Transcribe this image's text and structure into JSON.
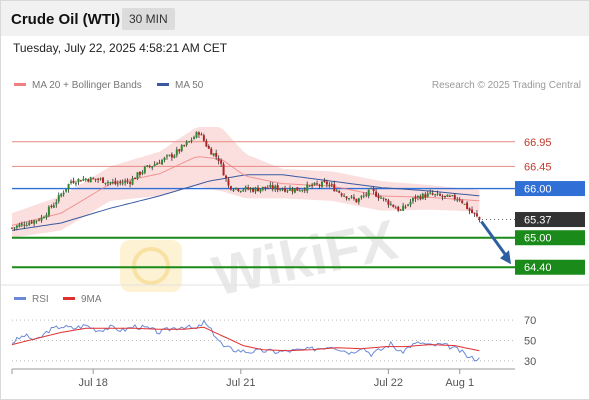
{
  "header": {
    "title": "Crude Oil (WTI)",
    "interval": "30 MIN"
  },
  "timestamp": "Tuesday, July 22, 2025 4:58:21 AM CET",
  "source": "Research © 2025 Trading Central",
  "watermark": "WikiFX",
  "legend_main": [
    {
      "label": "MA 20 + Bollinger Bands",
      "color": "#f08080"
    },
    {
      "label": "MA 50",
      "color": "#3a5aa0"
    }
  ],
  "legend_rsi": [
    {
      "label": "RSI",
      "color": "#6a8ad8"
    },
    {
      "label": "9MA",
      "color": "#e03030"
    }
  ],
  "chart_data": [
    {
      "type": "candlestick",
      "symbol": "Crude Oil (WTI)",
      "interval": "30 MIN",
      "ylim": [
        64.1,
        67.8
      ],
      "x_ticks": [
        {
          "label": "Jul 18",
          "i": 33
        },
        {
          "label": "Jul 21",
          "i": 93
        },
        {
          "label": "Jul 22",
          "i": 153
        },
        {
          "label": "Aug 1",
          "i": 182
        }
      ],
      "levels": [
        {
          "value": 66.95,
          "label": "66.95",
          "style": "resistance-thin",
          "color": "#e48a82"
        },
        {
          "value": 66.45,
          "label": "66.45",
          "style": "resistance-thin",
          "color": "#e48a82"
        },
        {
          "value": 66.0,
          "label": "66.00",
          "style": "pivot",
          "color": "#2f6fd6"
        },
        {
          "value": 65.37,
          "label": "65.37",
          "style": "last-price",
          "color": "#333333"
        },
        {
          "value": 65.0,
          "label": "65.00",
          "style": "support",
          "color": "#1a8a1a"
        },
        {
          "value": 64.4,
          "label": "64.40",
          "style": "support",
          "color": "#1a8a1a"
        }
      ],
      "forecast_arrow": {
        "from": 65.37,
        "to": 64.4
      },
      "close_path": [
        [
          0,
          65.2
        ],
        [
          6,
          65.3
        ],
        [
          12,
          65.4
        ],
        [
          18,
          65.75
        ],
        [
          24,
          66.15
        ],
        [
          30,
          66.2
        ],
        [
          36,
          66.18
        ],
        [
          42,
          66.1
        ],
        [
          48,
          66.15
        ],
        [
          54,
          66.4
        ],
        [
          60,
          66.55
        ],
        [
          66,
          66.7
        ],
        [
          72,
          66.95
        ],
        [
          76,
          67.15
        ],
        [
          80,
          66.8
        ],
        [
          84,
          66.6
        ],
        [
          88,
          66.05
        ],
        [
          92,
          66.0
        ],
        [
          98,
          65.98
        ],
        [
          104,
          66.02
        ],
        [
          110,
          66.0
        ],
        [
          116,
          65.98
        ],
        [
          122,
          66.05
        ],
        [
          128,
          66.1
        ],
        [
          134,
          65.9
        ],
        [
          140,
          65.75
        ],
        [
          146,
          65.95
        ],
        [
          152,
          65.75
        ],
        [
          158,
          65.55
        ],
        [
          164,
          65.82
        ],
        [
          170,
          65.88
        ],
        [
          176,
          65.82
        ],
        [
          182,
          65.8
        ],
        [
          186,
          65.55
        ],
        [
          190,
          65.37
        ]
      ],
      "ma20_path": [
        [
          0,
          65.25
        ],
        [
          20,
          65.5
        ],
        [
          40,
          66.1
        ],
        [
          60,
          66.3
        ],
        [
          75,
          66.65
        ],
        [
          85,
          66.6
        ],
        [
          95,
          66.25
        ],
        [
          110,
          66.1
        ],
        [
          130,
          66.05
        ],
        [
          150,
          65.85
        ],
        [
          170,
          65.82
        ],
        [
          190,
          65.75
        ]
      ],
      "ma50_path": [
        [
          0,
          65.15
        ],
        [
          20,
          65.3
        ],
        [
          40,
          65.6
        ],
        [
          60,
          65.85
        ],
        [
          80,
          66.15
        ],
        [
          95,
          66.28
        ],
        [
          110,
          66.28
        ],
        [
          130,
          66.15
        ],
        [
          150,
          66.02
        ],
        [
          170,
          65.95
        ],
        [
          190,
          65.85
        ]
      ],
      "bollinger_halfwidth": [
        [
          0,
          0.25
        ],
        [
          20,
          0.35
        ],
        [
          40,
          0.35
        ],
        [
          60,
          0.45
        ],
        [
          75,
          0.6
        ],
        [
          85,
          0.65
        ],
        [
          95,
          0.45
        ],
        [
          110,
          0.3
        ],
        [
          130,
          0.3
        ],
        [
          150,
          0.3
        ],
        [
          170,
          0.25
        ],
        [
          190,
          0.22
        ]
      ]
    },
    {
      "type": "line",
      "name": "RSI panel",
      "ylim": [
        25,
        78
      ],
      "y_ticks": [
        "70",
        "50",
        "30"
      ],
      "y_tick_values": [
        70,
        50,
        30
      ],
      "rsi_path": [
        [
          0,
          48
        ],
        [
          5,
          55
        ],
        [
          10,
          50
        ],
        [
          15,
          60
        ],
        [
          20,
          64
        ],
        [
          25,
          62
        ],
        [
          30,
          65
        ],
        [
          35,
          60
        ],
        [
          40,
          63
        ],
        [
          45,
          60
        ],
        [
          50,
          64
        ],
        [
          55,
          62
        ],
        [
          60,
          58
        ],
        [
          65,
          62
        ],
        [
          70,
          64
        ],
        [
          75,
          61
        ],
        [
          78,
          68
        ],
        [
          82,
          57
        ],
        [
          86,
          44
        ],
        [
          90,
          41
        ],
        [
          96,
          39
        ],
        [
          102,
          40
        ],
        [
          108,
          39
        ],
        [
          114,
          40
        ],
        [
          120,
          41
        ],
        [
          126,
          43
        ],
        [
          130,
          45
        ],
        [
          134,
          41
        ],
        [
          138,
          38
        ],
        [
          142,
          44
        ],
        [
          146,
          37
        ],
        [
          150,
          41
        ],
        [
          154,
          47
        ],
        [
          158,
          38
        ],
        [
          162,
          45
        ],
        [
          166,
          48
        ],
        [
          170,
          45
        ],
        [
          174,
          46
        ],
        [
          178,
          44
        ],
        [
          182,
          40
        ],
        [
          186,
          33
        ],
        [
          190,
          32
        ]
      ],
      "ma9_path": [
        [
          0,
          46
        ],
        [
          10,
          52
        ],
        [
          20,
          58
        ],
        [
          30,
          62
        ],
        [
          40,
          62
        ],
        [
          50,
          62
        ],
        [
          60,
          61
        ],
        [
          70,
          61
        ],
        [
          78,
          63
        ],
        [
          86,
          54
        ],
        [
          94,
          45
        ],
        [
          102,
          41
        ],
        [
          112,
          40
        ],
        [
          122,
          41
        ],
        [
          132,
          43
        ],
        [
          142,
          42
        ],
        [
          152,
          44
        ],
        [
          160,
          44
        ],
        [
          170,
          46
        ],
        [
          180,
          45
        ],
        [
          186,
          42
        ],
        [
          190,
          40
        ]
      ]
    }
  ]
}
